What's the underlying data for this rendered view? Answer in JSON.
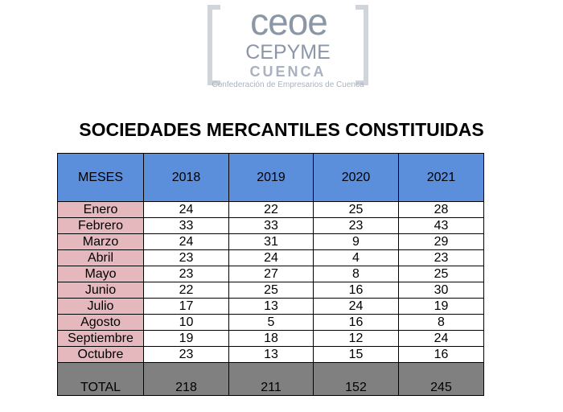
{
  "logo": {
    "main": "ceoe",
    "cepyme": "CEPYME",
    "cuenca": "CUENCA",
    "sub": "Confederación de Empresarios de Cuenca"
  },
  "title": "SOCIEDADES MERCANTILES CONSTITUIDAS",
  "table": {
    "headers": [
      "MESES",
      "2018",
      "2019",
      "2020",
      "2021"
    ],
    "rows": [
      [
        "Enero",
        "24",
        "22",
        "25",
        "28"
      ],
      [
        "Febrero",
        "33",
        "33",
        "23",
        "43"
      ],
      [
        "Marzo",
        "24",
        "31",
        "9",
        "29"
      ],
      [
        "Abril",
        "23",
        "24",
        "4",
        "23"
      ],
      [
        "Mayo",
        "23",
        "27",
        "8",
        "25"
      ],
      [
        "Junio",
        "22",
        "25",
        "16",
        "30"
      ],
      [
        "Julio",
        "17",
        "13",
        "24",
        "19"
      ],
      [
        "Agosto",
        "10",
        "5",
        "16",
        "8"
      ],
      [
        "Septiembre",
        "19",
        "18",
        "12",
        "24"
      ],
      [
        "Octubre",
        "23",
        "13",
        "15",
        "16"
      ]
    ],
    "total": [
      "TOTAL",
      "218",
      "211",
      "152",
      "245"
    ]
  },
  "colors": {
    "header_bg": "#5b8edb",
    "month_bg": "#e4b8bd",
    "total_bg": "#808080",
    "logo": "#8b97a6"
  }
}
